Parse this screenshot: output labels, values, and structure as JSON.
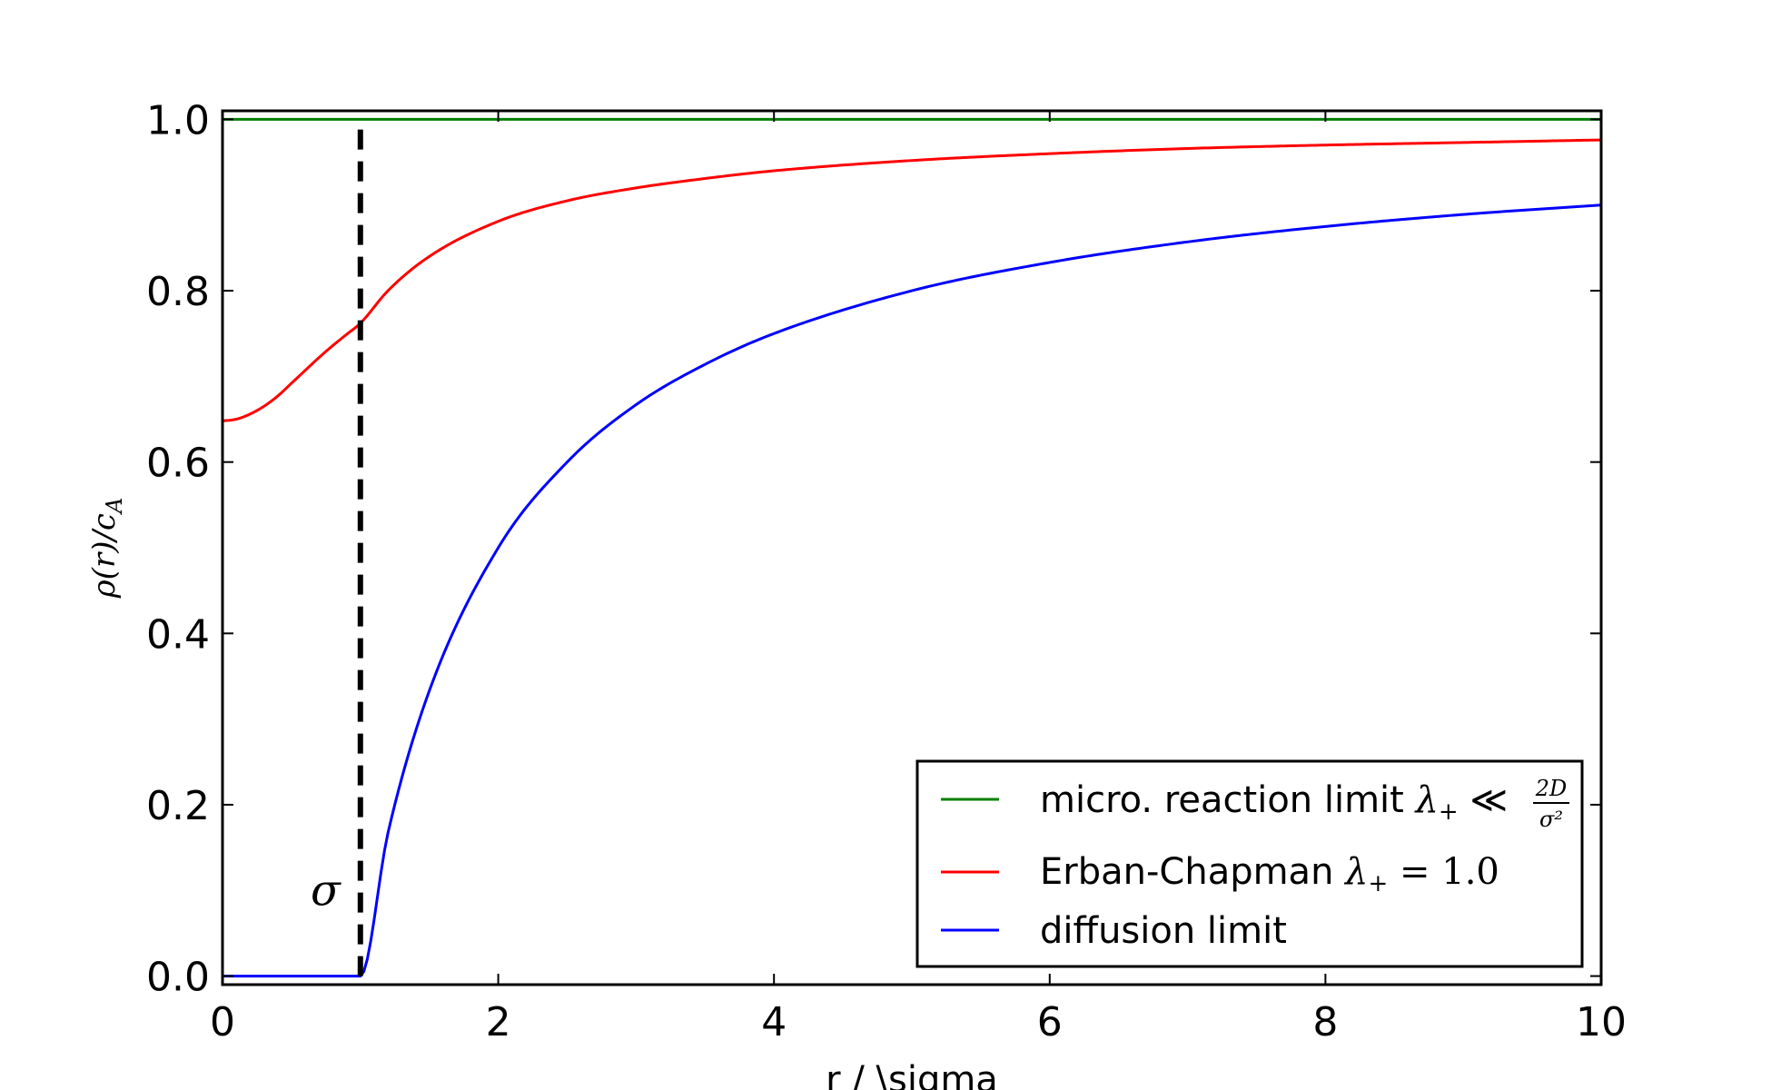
{
  "chart_data": {
    "type": "line",
    "title": "",
    "xlabel": "r / \\sigma",
    "ylabel": "ρ(r)/c_A",
    "ylabel_parts": {
      "main": "ρ(r)/c",
      "sub": "A"
    },
    "xlim": [
      0,
      10
    ],
    "ylim": [
      -0.01,
      1.01
    ],
    "x_ticks": [
      0,
      2,
      4,
      6,
      8,
      10
    ],
    "x_tick_labels": [
      "0",
      "2",
      "4",
      "6",
      "8",
      "10"
    ],
    "y_ticks": [
      0.0,
      0.2,
      0.4,
      0.6,
      0.8,
      1.0
    ],
    "y_tick_labels": [
      "0.0",
      "0.2",
      "0.4",
      "0.6",
      "0.8",
      "1.0"
    ],
    "grid": false,
    "legend_position": "lower-right",
    "series": [
      {
        "name": "micro. reaction limit λ₊ ≪ 2D/σ²",
        "legend_parts": {
          "text": "micro. reaction limit ",
          "lambda": "λ",
          "plus": "+",
          "rel": " ≪ ",
          "num": "2D",
          "den": "σ²"
        },
        "color": "#008000",
        "x": [
          0,
          1,
          2,
          3,
          4,
          5,
          6,
          7,
          8,
          9,
          10
        ],
        "y": [
          1.0,
          1.0,
          1.0,
          1.0,
          1.0,
          1.0,
          1.0,
          1.0,
          1.0,
          1.0,
          1.0
        ]
      },
      {
        "name": "Erban-Chapman λ₊ = 1.0",
        "legend_parts": {
          "text": "Erban-Chapman ",
          "lambda": "λ",
          "plus": "+",
          "rel": " = ",
          "value": "1.0"
        },
        "color": "#ff0000",
        "x": [
          0,
          0.1,
          0.2,
          0.3,
          0.4,
          0.5,
          0.6,
          0.7,
          0.8,
          0.9,
          1.0,
          1.2,
          1.5,
          2.0,
          2.5,
          3.0,
          3.5,
          4.0,
          5.0,
          6.0,
          7.0,
          8.0,
          9.0,
          10.0
        ],
        "y": [
          0.648,
          0.65,
          0.656,
          0.665,
          0.677,
          0.692,
          0.707,
          0.722,
          0.736,
          0.749,
          0.762,
          0.8,
          0.84,
          0.881,
          0.905,
          0.92,
          0.931,
          0.94,
          0.952,
          0.96,
          0.966,
          0.97,
          0.973,
          0.976
        ]
      },
      {
        "name": "diffusion limit",
        "color": "#0000ff",
        "x": [
          0,
          0.5,
          1.0,
          1.2,
          1.5,
          2.0,
          2.5,
          3.0,
          3.5,
          4.0,
          5.0,
          6.0,
          7.0,
          8.0,
          9.0,
          10.0
        ],
        "y": [
          0.0,
          0.0,
          0.0,
          0.167,
          0.333,
          0.5,
          0.6,
          0.667,
          0.714,
          0.75,
          0.8,
          0.833,
          0.857,
          0.875,
          0.889,
          0.9
        ]
      }
    ],
    "annotations": [
      {
        "type": "vline",
        "x": 1.0,
        "y0": 0.0,
        "y1": 1.0,
        "style": "dashed",
        "color": "#000000",
        "label": "σ"
      }
    ]
  }
}
